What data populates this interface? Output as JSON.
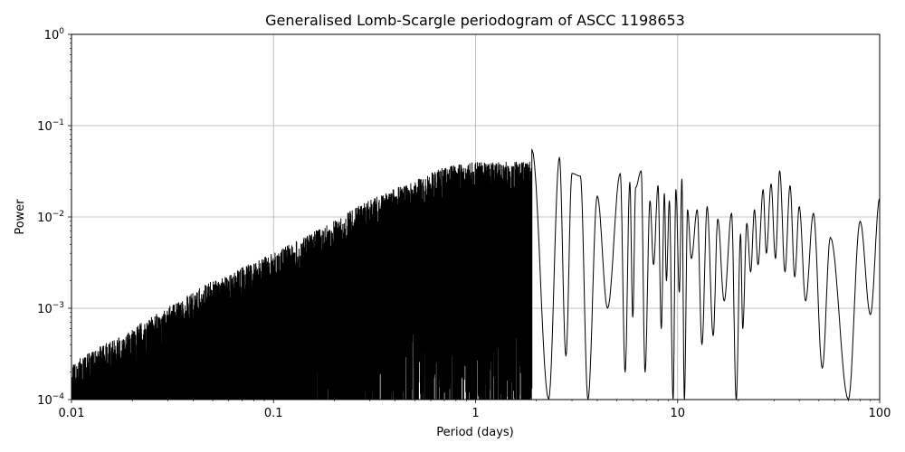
{
  "chart_data": {
    "type": "line",
    "title": "Generalised Lomb-Scargle periodogram of ASCC 1198653",
    "xlabel": "Period (days)",
    "ylabel": "Power",
    "xscale": "log",
    "yscale": "log",
    "xlim": [
      0.01,
      100
    ],
    "ylim": [
      0.0001,
      1
    ],
    "grid": true,
    "x_ticks": [
      {
        "value": 0.01,
        "label": "0.01"
      },
      {
        "value": 0.1,
        "label": "0.1"
      },
      {
        "value": 1,
        "label": "1"
      },
      {
        "value": 10,
        "label": "10"
      },
      {
        "value": 100,
        "label": "100"
      }
    ],
    "y_ticks": [
      {
        "value": 0.0001,
        "base": "10",
        "exp": "−4"
      },
      {
        "value": 0.001,
        "base": "10",
        "exp": "−3"
      },
      {
        "value": 0.01,
        "base": "10",
        "exp": "−2"
      },
      {
        "value": 0.1,
        "base": "10",
        "exp": "−1"
      },
      {
        "value": 1,
        "base": "10",
        "exp": "0"
      }
    ],
    "line_color": "#000000",
    "envelope": {
      "x": [
        0.01,
        0.02,
        0.05,
        0.1,
        0.2,
        0.3,
        0.5,
        0.7,
        1.0
      ],
      "y": [
        0.00025,
        0.0006,
        0.002,
        0.004,
        0.009,
        0.016,
        0.025,
        0.035,
        0.04
      ]
    },
    "peaks": {
      "x": [
        1.9,
        2.6,
        3.0,
        3.3,
        4.0,
        5.2,
        5.8,
        6.2,
        6.6,
        7.3,
        8.0,
        8.6,
        9.1,
        9.8,
        10.5,
        11.2,
        12.5,
        14.0,
        15.8,
        18.5,
        20.5,
        22.0,
        24.0,
        26.5,
        29.0,
        32.0,
        36.0,
        40.0,
        47.0,
        57.0,
        80.0,
        100.0
      ],
      "y": [
        0.055,
        0.045,
        0.03,
        0.028,
        0.017,
        0.03,
        0.024,
        0.021,
        0.032,
        0.015,
        0.022,
        0.018,
        0.015,
        0.02,
        0.026,
        0.012,
        0.012,
        0.013,
        0.0095,
        0.011,
        0.0065,
        0.0085,
        0.012,
        0.02,
        0.023,
        0.032,
        0.022,
        0.013,
        0.011,
        0.006,
        0.009,
        0.016
      ]
    },
    "troughs": {
      "x": [
        2.3,
        2.8,
        3.6,
        4.5,
        5.5,
        6.0,
        6.9,
        7.6,
        8.3,
        8.8,
        9.5,
        10.2,
        10.8,
        11.7,
        13.2,
        15.0,
        17.0,
        19.5,
        21.0,
        23.0,
        25.0,
        27.5,
        30.5,
        34.0,
        38.0,
        43.0,
        52.0,
        70.0,
        90.0
      ],
      "y": [
        0.0001,
        0.0003,
        0.0001,
        0.001,
        0.0002,
        0.0008,
        0.0002,
        0.003,
        0.0006,
        0.002,
        0.0001,
        0.0015,
        0.0001,
        0.0035,
        0.0004,
        0.0005,
        0.0012,
        0.0001,
        0.0006,
        0.0025,
        0.003,
        0.004,
        0.0035,
        0.0025,
        0.0022,
        0.0012,
        0.00022,
        0.0001,
        0.00085
      ]
    }
  }
}
